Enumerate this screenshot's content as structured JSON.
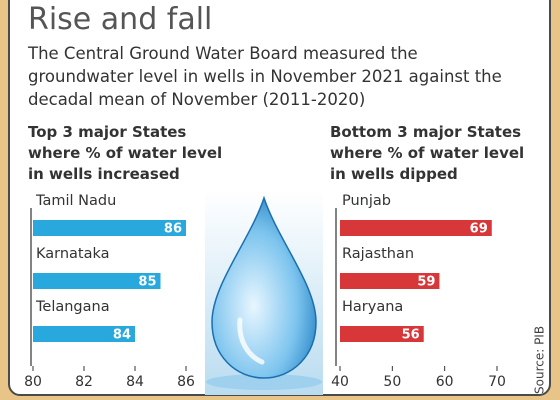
{
  "title": "Rise and fall",
  "subtitle": "The Central Ground Water Board measured the groundwater level in wells in November 2021 against the decadal mean of November (2011-2020)",
  "source": "Source: PIB",
  "chart_data": [
    {
      "type": "bar",
      "orientation": "horizontal",
      "title": "Top 3 major States where % of water level in wells increased",
      "categories": [
        "Tamil Nadu",
        "Karnataka",
        "Telangana"
      ],
      "values": [
        86,
        85,
        84
      ],
      "color": "#29a8de",
      "xlim": [
        80,
        86
      ],
      "xticks": [
        80,
        82,
        84,
        86
      ]
    },
    {
      "type": "bar",
      "orientation": "horizontal",
      "title": "Bottom 3 major States where % of water level in wells dipped",
      "categories": [
        "Punjab",
        "Rajasthan",
        "Haryana"
      ],
      "values": [
        69,
        59,
        56
      ],
      "color": "#d8373a",
      "xlim": [
        40,
        70
      ],
      "xticks": [
        40,
        50,
        60,
        70
      ]
    }
  ]
}
